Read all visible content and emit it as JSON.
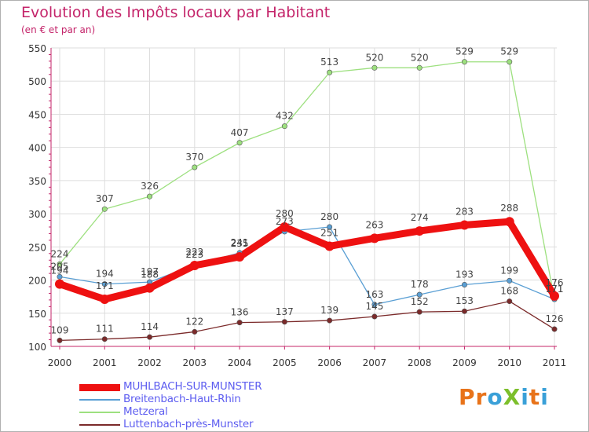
{
  "title": "Evolution des Impôts locaux par Habitant",
  "subtitle": "(en € et par an)",
  "logo": {
    "text": "ProXiti",
    "letters": [
      "P",
      "r",
      "o",
      "X",
      "i",
      "t",
      "i"
    ],
    "colors": [
      "#e8731a",
      "#e8731a",
      "#3aa0d8",
      "#7cbf2b",
      "#3aa0d8",
      "#e8731a",
      "#3aa0d8"
    ]
  },
  "chart_data": {
    "type": "line",
    "x": [
      "2000",
      "2001",
      "2002",
      "2003",
      "2004",
      "2005",
      "2006",
      "2007",
      "2008",
      "2009",
      "2010",
      "2011"
    ],
    "ylim": [
      100,
      550
    ],
    "yticks": [
      "100",
      "150",
      "200",
      "250",
      "300",
      "350",
      "400",
      "450",
      "500",
      "550"
    ],
    "grid": true,
    "legend_placement": "bottom-left",
    "series": [
      {
        "name": "MUHLBACH-SUR-MUNSTER",
        "color": "#ee1111",
        "width": 9,
        "values": [
          194,
          171,
          188,
          222,
          235,
          280,
          251,
          263,
          274,
          283,
          288,
          176
        ],
        "labels": [
          "194",
          "171",
          "188",
          "222",
          "235",
          "280",
          "251",
          "263",
          "274",
          "283",
          "288",
          "176"
        ]
      },
      {
        "name": "Breitenbach-Haut-Rhin",
        "color": "#5a9fd4",
        "width": 1.3,
        "values": [
          205,
          194,
          197,
          223,
          241,
          273,
          280,
          163,
          178,
          193,
          199,
          171
        ],
        "labels": [
          "205",
          "194",
          "197",
          "223",
          "241",
          "273",
          "280",
          "163",
          "178",
          "193",
          "199",
          "171"
        ]
      },
      {
        "name": "Metzeral",
        "color": "#9de07f",
        "width": 1.3,
        "values": [
          224,
          307,
          326,
          370,
          407,
          432,
          513,
          520,
          520,
          529,
          529,
          171
        ],
        "labels": [
          "224",
          "307",
          "326",
          "370",
          "407",
          "432",
          "513",
          "520",
          "520",
          "529",
          "529",
          "171"
        ]
      },
      {
        "name": "Luttenbach-près-Munster",
        "color": "#7b2a2a",
        "width": 1.3,
        "values": [
          109,
          111,
          114,
          122,
          136,
          137,
          139,
          145,
          152,
          153,
          168,
          126
        ],
        "labels": [
          "109",
          "111",
          "114",
          "122",
          "136",
          "137",
          "139",
          "145",
          "152",
          "153",
          "168",
          "126"
        ]
      }
    ]
  }
}
